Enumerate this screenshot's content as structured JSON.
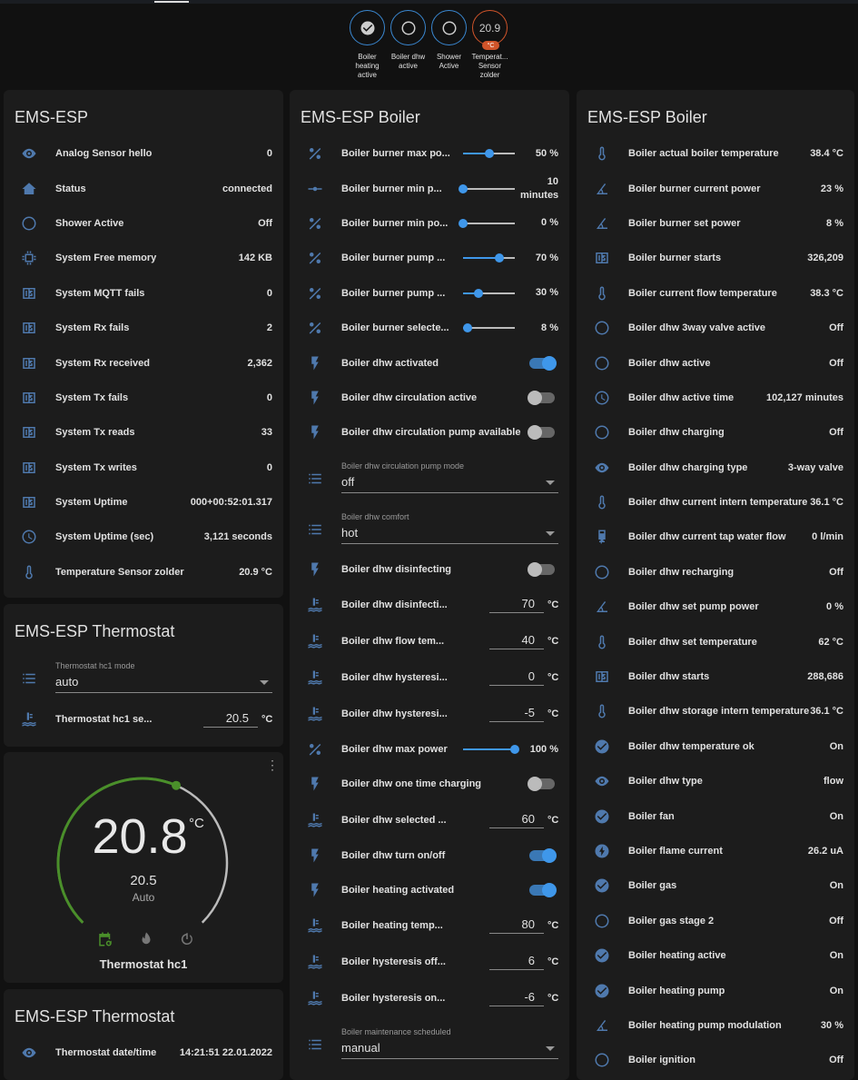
{
  "colors": {
    "accent": "#3f97ea",
    "badge_border": "#3a87d0",
    "temp_badge": "#d0542a",
    "heat_arc": "#4a8f2a",
    "card": "#1c1c1c",
    "icon": "#4f79ad"
  },
  "badges": [
    {
      "icon": "check-circle",
      "label": "Boiler heating active"
    },
    {
      "icon": "circle-outline",
      "label": "Boiler dhw active"
    },
    {
      "icon": "circle-outline",
      "label": "Shower Active"
    },
    {
      "value": "20.9",
      "unit": "°C",
      "label": "Temperat... Sensor zolder"
    }
  ],
  "card1": {
    "title": "EMS-ESP",
    "rows": [
      {
        "icon": "eye",
        "name": "Analog Sensor hello",
        "value": "0"
      },
      {
        "icon": "home-wifi",
        "name": "Status",
        "value": "connected"
      },
      {
        "icon": "circle",
        "name": "Shower Active",
        "value": "Off"
      },
      {
        "icon": "chip",
        "name": "System Free memory",
        "value": "142 KB"
      },
      {
        "icon": "counter",
        "name": "System MQTT fails",
        "value": "0"
      },
      {
        "icon": "counter",
        "name": "System Rx fails",
        "value": "2"
      },
      {
        "icon": "counter",
        "name": "System Rx received",
        "value": "2,362"
      },
      {
        "icon": "counter",
        "name": "System Tx fails",
        "value": "0"
      },
      {
        "icon": "counter",
        "name": "System Tx reads",
        "value": "33"
      },
      {
        "icon": "counter",
        "name": "System Tx writes",
        "value": "0"
      },
      {
        "icon": "counter",
        "name": "System Uptime",
        "value": "000+00:52:01.317"
      },
      {
        "icon": "clock",
        "name": "System Uptime (sec)",
        "value": "3,121 seconds"
      },
      {
        "icon": "thermometer",
        "name": "Temperature Sensor zolder",
        "value": "20.9 °C"
      }
    ]
  },
  "card_thermostat": {
    "title": "EMS-ESP Thermostat",
    "rows": [
      {
        "type": "select",
        "icon": "list",
        "name": "Thermostat hc1 mode",
        "value": "auto"
      },
      {
        "type": "number",
        "icon": "water-thermometer",
        "name": "Thermostat hc1 se...",
        "value": "20.5",
        "unit": "°C"
      }
    ]
  },
  "climate": {
    "current": "20.8",
    "unit": "°C",
    "target": "20.5",
    "target_value": 20.5,
    "mode": "Auto",
    "name": "Thermostat hc1",
    "modes": [
      "schedule",
      "heat",
      "off"
    ],
    "active_mode": "schedule"
  },
  "card4": {
    "title": "EMS-ESP Thermostat",
    "rows": [
      {
        "icon": "eye",
        "name": "Thermostat date/time",
        "value": "14:21:51 22.01.2022"
      }
    ]
  },
  "card2": {
    "title": "EMS-ESP Boiler",
    "rows": [
      {
        "type": "slider",
        "icon": "percent",
        "name": "Boiler burner max po...",
        "value": "50 %",
        "level": 50
      },
      {
        "type": "slider",
        "icon": "slider",
        "name": "Boiler burner min p...",
        "value": "10 minutes",
        "level": 0
      },
      {
        "type": "slider",
        "icon": "percent",
        "name": "Boiler burner min po...",
        "value": "0 %",
        "level": 0
      },
      {
        "type": "slider",
        "icon": "percent",
        "name": "Boiler burner pump ...",
        "value": "70 %",
        "level": 70
      },
      {
        "type": "slider",
        "icon": "percent",
        "name": "Boiler burner pump ...",
        "value": "30 %",
        "level": 30
      },
      {
        "type": "slider",
        "icon": "percent",
        "name": "Boiler burner selecte...",
        "value": "8 %",
        "level": 8
      },
      {
        "type": "toggle",
        "icon": "flash",
        "name": "Boiler dhw activated",
        "on": true
      },
      {
        "type": "toggle",
        "icon": "flash",
        "name": "Boiler dhw circulation active",
        "on": false
      },
      {
        "type": "toggle",
        "icon": "flash",
        "name": "Boiler dhw circulation pump available",
        "on": false
      },
      {
        "type": "select",
        "icon": "list",
        "name": "Boiler dhw circulation pump mode",
        "value": "off"
      },
      {
        "type": "select",
        "icon": "list",
        "name": "Boiler dhw comfort",
        "value": "hot"
      },
      {
        "type": "toggle",
        "icon": "flash",
        "name": "Boiler dhw disinfecting",
        "on": false
      },
      {
        "type": "number",
        "icon": "water-thermometer",
        "name": "Boiler dhw disinfecti...",
        "value": "70",
        "unit": "°C"
      },
      {
        "type": "number",
        "icon": "water-thermometer",
        "name": "Boiler dhw flow tem...",
        "value": "40",
        "unit": "°C"
      },
      {
        "type": "number",
        "icon": "water-thermometer",
        "name": "Boiler dhw hysteresi...",
        "value": "0",
        "unit": "°C"
      },
      {
        "type": "number",
        "icon": "water-thermometer",
        "name": "Boiler dhw hysteresi...",
        "value": "-5",
        "unit": "°C"
      },
      {
        "type": "slider",
        "icon": "percent",
        "name": "Boiler dhw max power",
        "value": "100 %",
        "level": 100
      },
      {
        "type": "toggle",
        "icon": "flash",
        "name": "Boiler dhw one time charging",
        "on": false
      },
      {
        "type": "number",
        "icon": "water-thermometer",
        "name": "Boiler dhw selected ...",
        "value": "60",
        "unit": "°C"
      },
      {
        "type": "toggle",
        "icon": "flash",
        "name": "Boiler dhw turn on/off",
        "on": true
      },
      {
        "type": "toggle",
        "icon": "flash",
        "name": "Boiler heating activated",
        "on": true
      },
      {
        "type": "number",
        "icon": "water-thermometer",
        "name": "Boiler heating temp...",
        "value": "80",
        "unit": "°C"
      },
      {
        "type": "number",
        "icon": "water-thermometer",
        "name": "Boiler hysteresis off...",
        "value": "6",
        "unit": "°C"
      },
      {
        "type": "number",
        "icon": "water-thermometer",
        "name": "Boiler hysteresis on...",
        "value": "-6",
        "unit": "°C"
      },
      {
        "type": "select",
        "icon": "list",
        "name": "Boiler maintenance scheduled",
        "value": "manual"
      }
    ]
  },
  "card3": {
    "title": "EMS-ESP Boiler",
    "rows": [
      {
        "icon": "thermometer",
        "name": "Boiler actual boiler temperature",
        "value": "38.4 °C"
      },
      {
        "icon": "angle",
        "name": "Boiler burner current power",
        "value": "23 %"
      },
      {
        "icon": "angle",
        "name": "Boiler burner set power",
        "value": "8 %"
      },
      {
        "icon": "counter",
        "name": "Boiler burner starts",
        "value": "326,209"
      },
      {
        "icon": "thermometer",
        "name": "Boiler current flow temperature",
        "value": "38.3 °C"
      },
      {
        "icon": "circle",
        "name": "Boiler dhw 3way valve active",
        "value": "Off"
      },
      {
        "icon": "circle",
        "name": "Boiler dhw active",
        "value": "Off"
      },
      {
        "icon": "clock",
        "name": "Boiler dhw active time",
        "value": "102,127 minutes"
      },
      {
        "icon": "circle",
        "name": "Boiler dhw charging",
        "value": "Off"
      },
      {
        "icon": "eye",
        "name": "Boiler dhw charging type",
        "value": "3-way valve"
      },
      {
        "icon": "thermometer",
        "name": "Boiler dhw current intern temperature",
        "value": "36.1 °C"
      },
      {
        "icon": "water-pump",
        "name": "Boiler dhw current tap water flow",
        "value": "0 l/min"
      },
      {
        "icon": "circle",
        "name": "Boiler dhw recharging",
        "value": "Off"
      },
      {
        "icon": "angle",
        "name": "Boiler dhw set pump power",
        "value": "0 %"
      },
      {
        "icon": "thermometer",
        "name": "Boiler dhw set temperature",
        "value": "62 °C"
      },
      {
        "icon": "counter",
        "name": "Boiler dhw starts",
        "value": "288,686"
      },
      {
        "icon": "thermometer",
        "name": "Boiler dhw storage intern temperature",
        "value": "36.1 °C"
      },
      {
        "icon": "check-circle",
        "name": "Boiler dhw temperature ok",
        "value": "On"
      },
      {
        "icon": "eye",
        "name": "Boiler dhw type",
        "value": "flow"
      },
      {
        "icon": "check-circle",
        "name": "Boiler fan",
        "value": "On"
      },
      {
        "icon": "flash-circle",
        "name": "Boiler flame current",
        "value": "26.2 uA"
      },
      {
        "icon": "check-circle",
        "name": "Boiler gas",
        "value": "On"
      },
      {
        "icon": "circle",
        "name": "Boiler gas stage 2",
        "value": "Off"
      },
      {
        "icon": "check-circle",
        "name": "Boiler heating active",
        "value": "On"
      },
      {
        "icon": "check-circle",
        "name": "Boiler heating pump",
        "value": "On"
      },
      {
        "icon": "angle",
        "name": "Boiler heating pump modulation",
        "value": "30 %"
      },
      {
        "icon": "circle",
        "name": "Boiler ignition",
        "value": "Off"
      }
    ]
  }
}
